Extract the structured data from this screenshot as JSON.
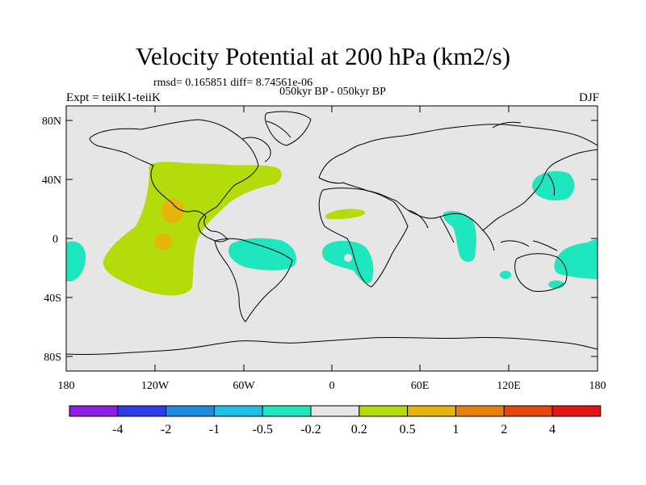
{
  "map": {
    "title": "Velocity Potential at 200 hPa (km2/s)",
    "subtitle": "rmsd= 0.165851 diff= 8.74561e-06",
    "center_string": "050kyr BP - 050kyr BP",
    "left_string": "Expt = teiiK1-teiiK",
    "right_string": "DJF",
    "lat_ticks": [
      "80N",
      "40N",
      "0",
      "40S",
      "80S"
    ],
    "lon_ticks": [
      "180",
      "120W",
      "60W",
      "0",
      "60E",
      "120E",
      "180"
    ],
    "colorbar_labels": [
      "-4",
      "-2",
      "-1",
      "-0.5",
      "-0.2",
      "0.2",
      "0.5",
      "1",
      "2",
      "4"
    ],
    "colorbar_colors": [
      "#8c1ee6",
      "#2d3ce6",
      "#1e8cdc",
      "#1ebee6",
      "#1ee6be",
      "#e6e6e6",
      "#b4dc0a",
      "#e6b40a",
      "#e6820a",
      "#e6460a",
      "#e61414"
    ],
    "colors": {
      "ocean_background": "#e6e6e6",
      "positive_02_05": "#b4dc0a",
      "positive_05_1": "#e6b40a",
      "negative_05_02": "#1ee6be"
    }
  }
}
